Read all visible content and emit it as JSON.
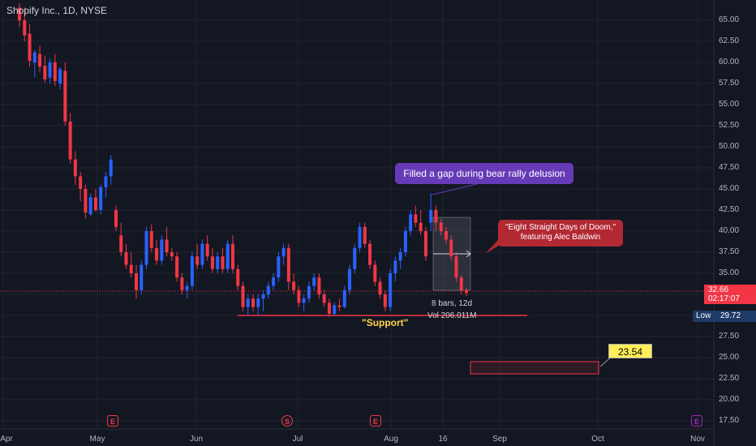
{
  "header": {
    "title": "Shopify Inc., 1D, NYSE"
  },
  "y_axis": {
    "ticks": [
      "65.00",
      "62.50",
      "60.00",
      "57.50",
      "55.00",
      "52.50",
      "50.00",
      "47.50",
      "45.00",
      "42.50",
      "40.00",
      "37.50",
      "35.00",
      "32.50",
      "30.00",
      "27.50",
      "25.00",
      "22.50",
      "20.00",
      "17.50"
    ],
    "last_price": "32.66",
    "countdown": "02:17:07",
    "low_label": "Low",
    "low_value": "29.72"
  },
  "x_axis": {
    "ticks": [
      "Apr",
      "May",
      "Jun",
      "Jul",
      "Aug",
      "16",
      "Sep",
      "Oct",
      "Nov"
    ]
  },
  "annotations": {
    "purple_callout": "Filled a gap during bear rally delusion",
    "red_callout_line1": "\"Eight Straight Days of Doom,\"",
    "red_callout_line2": "featuring Alec Baldwin",
    "measure_bars": "8 bars, 12d",
    "measure_volume": "Vol 206.011M",
    "support_label": "\"Support\"",
    "price_tag": "23.54"
  },
  "events": [
    {
      "label": "E",
      "kind": "earnings"
    },
    {
      "label": "S",
      "kind": "split"
    },
    {
      "label": "E",
      "kind": "earnings"
    },
    {
      "label": "E",
      "kind": "earnings-upcoming"
    }
  ],
  "colors": {
    "up": "#2962ff",
    "down": "#f23645",
    "background": "#131722",
    "grid": "#1f2433"
  },
  "chart_data": {
    "type": "candlestick",
    "title": "Shopify Inc., 1D, NYSE",
    "ylim": [
      16,
      66
    ],
    "support_level": 29.72,
    "x_range": [
      "Apr",
      "Nov"
    ],
    "candles_ohlc": [
      [
        66.5,
        67.0,
        64.2,
        65.0
      ],
      [
        65.0,
        66.5,
        62.5,
        63.2
      ],
      [
        63.4,
        64.5,
        59.5,
        60.2
      ],
      [
        60.0,
        61.5,
        58.2,
        61.2
      ],
      [
        61.0,
        62.0,
        58.8,
        59.5
      ],
      [
        59.6,
        60.8,
        57.6,
        58.0
      ],
      [
        58.2,
        60.5,
        57.5,
        60.0
      ],
      [
        60.0,
        61.0,
        57.2,
        57.8
      ],
      [
        57.5,
        59.5,
        56.8,
        59.2
      ],
      [
        59.0,
        60.0,
        52.5,
        53.0
      ],
      [
        53.0,
        54.0,
        48.0,
        48.5
      ],
      [
        48.5,
        49.5,
        45.5,
        46.5
      ],
      [
        46.5,
        47.0,
        43.5,
        45.0
      ],
      [
        45.0,
        45.5,
        41.5,
        42.2
      ],
      [
        42.0,
        44.5,
        41.8,
        44.0
      ],
      [
        44.0,
        45.0,
        42.3,
        42.5
      ],
      [
        42.5,
        45.5,
        42.0,
        45.2
      ],
      [
        45.2,
        47.0,
        44.0,
        46.5
      ],
      [
        46.5,
        49.0,
        45.5,
        48.5
      ],
      [
        42.5,
        43.0,
        40.0,
        40.5
      ],
      [
        39.5,
        41.0,
        37.0,
        37.5
      ],
      [
        37.5,
        38.5,
        35.5,
        36.0
      ],
      [
        36.0,
        37.5,
        34.5,
        35.0
      ],
      [
        35.0,
        36.0,
        32.0,
        33.0
      ],
      [
        33.0,
        36.5,
        32.5,
        36.0
      ],
      [
        36.0,
        40.5,
        35.5,
        40.0
      ],
      [
        40.0,
        40.8,
        37.5,
        38.0
      ],
      [
        38.0,
        39.0,
        36.0,
        36.5
      ],
      [
        36.5,
        39.5,
        36.0,
        39.0
      ],
      [
        39.0,
        40.5,
        37.0,
        37.5
      ],
      [
        37.5,
        38.0,
        36.5,
        37.0
      ],
      [
        37.0,
        37.5,
        34.0,
        34.5
      ],
      [
        34.5,
        35.0,
        32.5,
        33.0
      ],
      [
        33.0,
        34.0,
        32.0,
        33.5
      ],
      [
        33.5,
        37.5,
        33.0,
        37.0
      ],
      [
        37.0,
        38.5,
        35.5,
        36.0
      ],
      [
        36.0,
        39.0,
        35.5,
        38.5
      ],
      [
        38.5,
        39.5,
        36.5,
        37.0
      ],
      [
        37.0,
        38.0,
        35.0,
        35.5
      ],
      [
        35.5,
        37.5,
        35.0,
        37.0
      ],
      [
        37.0,
        38.0,
        35.0,
        35.5
      ],
      [
        35.5,
        39.0,
        35.0,
        38.5
      ],
      [
        38.5,
        39.5,
        35.0,
        35.5
      ],
      [
        35.5,
        36.0,
        33.0,
        33.5
      ],
      [
        33.5,
        34.0,
        30.5,
        31.0
      ],
      [
        31.0,
        32.5,
        30.0,
        32.0
      ],
      [
        32.0,
        32.5,
        30.5,
        31.0
      ],
      [
        31.0,
        32.5,
        30.0,
        32.0
      ],
      [
        32.0,
        33.0,
        30.5,
        32.5
      ],
      [
        32.5,
        34.0,
        32.0,
        33.5
      ],
      [
        33.5,
        35.0,
        33.0,
        34.5
      ],
      [
        34.5,
        37.5,
        34.0,
        37.0
      ],
      [
        37.0,
        38.5,
        36.0,
        38.0
      ],
      [
        38.0,
        38.5,
        33.0,
        34.0
      ],
      [
        34.0,
        35.0,
        32.5,
        33.0
      ],
      [
        33.0,
        33.5,
        31.0,
        31.5
      ],
      [
        31.5,
        32.5,
        30.5,
        32.0
      ],
      [
        32.0,
        34.0,
        31.5,
        33.5
      ],
      [
        33.5,
        35.0,
        33.0,
        34.5
      ],
      [
        34.5,
        35.0,
        32.0,
        32.5
      ],
      [
        32.5,
        33.0,
        31.0,
        31.5
      ],
      [
        31.5,
        32.0,
        29.8,
        30.2
      ],
      [
        30.2,
        31.5,
        30.0,
        31.2
      ],
      [
        31.2,
        32.0,
        30.5,
        31.0
      ],
      [
        31.0,
        33.5,
        30.8,
        33.0
      ],
      [
        33.0,
        36.0,
        32.5,
        35.5
      ],
      [
        35.5,
        38.5,
        35.0,
        38.0
      ],
      [
        38.0,
        41.0,
        37.5,
        40.5
      ],
      [
        40.5,
        41.0,
        38.0,
        38.5
      ],
      [
        38.5,
        39.0,
        35.5,
        36.0
      ],
      [
        36.0,
        36.5,
        33.5,
        34.0
      ],
      [
        34.0,
        34.5,
        32.0,
        32.5
      ],
      [
        32.5,
        33.0,
        30.5,
        31.0
      ],
      [
        31.0,
        35.5,
        30.5,
        35.0
      ],
      [
        35.0,
        37.0,
        34.0,
        36.5
      ],
      [
        36.5,
        38.0,
        35.5,
        37.5
      ],
      [
        37.5,
        40.5,
        37.0,
        40.0
      ],
      [
        40.0,
        42.5,
        39.5,
        42.0
      ],
      [
        42.0,
        43.0,
        40.5,
        41.0
      ],
      [
        41.0,
        42.5,
        39.5,
        40.0
      ],
      [
        40.0,
        40.5,
        36.5,
        37.0
      ],
      [
        41.0,
        44.5,
        40.0,
        42.5
      ],
      [
        42.5,
        43.0,
        40.0,
        41.0
      ],
      [
        41.0,
        41.5,
        39.5,
        40.0
      ],
      [
        40.0,
        40.5,
        38.5,
        39.0
      ],
      [
        39.0,
        39.5,
        36.5,
        37.0
      ],
      [
        37.0,
        37.5,
        34.0,
        34.5
      ],
      [
        34.5,
        34.8,
        32.5,
        33.0
      ],
      [
        33.0,
        33.3,
        32.3,
        32.66
      ]
    ]
  }
}
